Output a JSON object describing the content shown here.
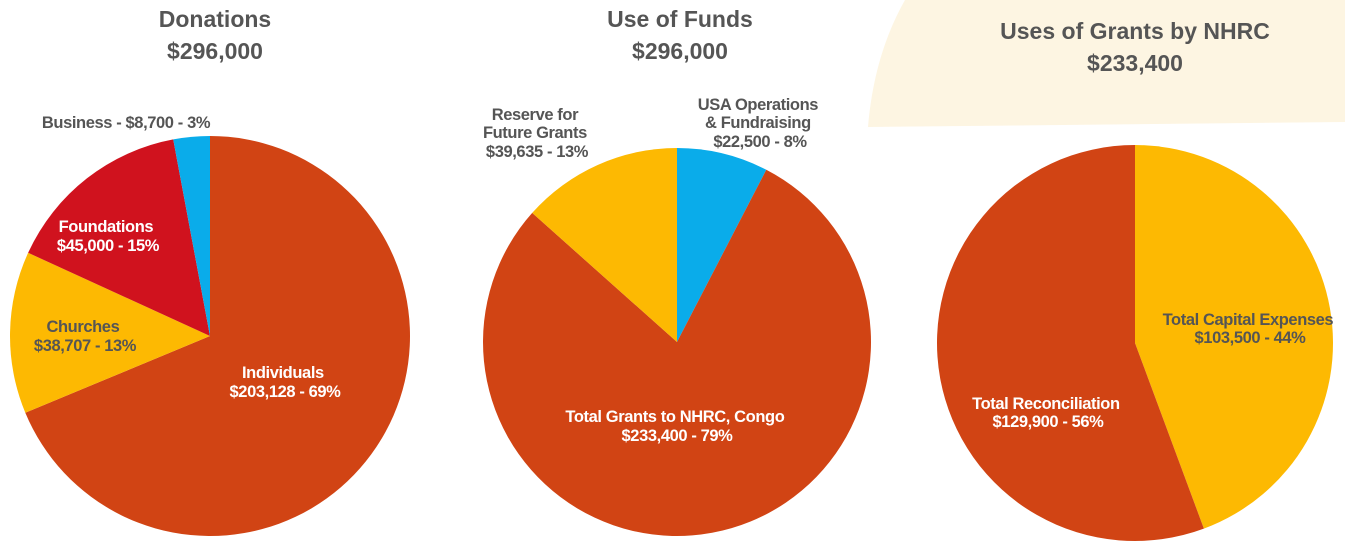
{
  "colors": {
    "individuals": "#D14414",
    "churches": "#FDB902",
    "foundations": "#D0121E",
    "business": "#0AACEA",
    "text_dark": "#555555",
    "text_light": "#ffffff",
    "blob": "#FDF5E2"
  },
  "chart_data": [
    {
      "type": "pie",
      "title": "Donations",
      "total": "$296,000",
      "slices": [
        {
          "name": "Individuals",
          "amount": "$203,128",
          "pct": "69%",
          "value": 203128,
          "color": "#D14414"
        },
        {
          "name": "Churches",
          "amount": "$38,707",
          "pct": "13%",
          "value": 38707,
          "color": "#FDB902"
        },
        {
          "name": "Foundations",
          "amount": "$45,000",
          "pct": "15%",
          "value": 45000,
          "color": "#D0121E"
        },
        {
          "name": "Business",
          "amount": "$8,700",
          "pct": "3%",
          "value": 8700,
          "color": "#0AACEA"
        }
      ]
    },
    {
      "type": "pie",
      "title": "Use of Funds",
      "total": "$296,000",
      "slices": [
        {
          "name": "USA Operations & Fundraising",
          "amount": "$22,500",
          "pct": "8%",
          "value": 22500,
          "color": "#0AACEA"
        },
        {
          "name": "Total Grants to NHRC, Congo",
          "amount": "$233,400",
          "pct": "79%",
          "value": 233400,
          "color": "#D14414"
        },
        {
          "name": "Reserve for Future Grants",
          "amount": "$39,635",
          "pct": "13%",
          "value": 39635,
          "color": "#FDB902"
        }
      ]
    },
    {
      "type": "pie",
      "title": "Uses of Grants by NHRC",
      "total": "$233,400",
      "slices": [
        {
          "name": "Total Capital Expenses",
          "amount": "$103,500",
          "pct": "44%",
          "value": 103500,
          "color": "#FDB902"
        },
        {
          "name": "Total Reconciliation",
          "amount": "$129,900",
          "pct": "56%",
          "value": 129900,
          "color": "#D14414"
        }
      ]
    }
  ]
}
